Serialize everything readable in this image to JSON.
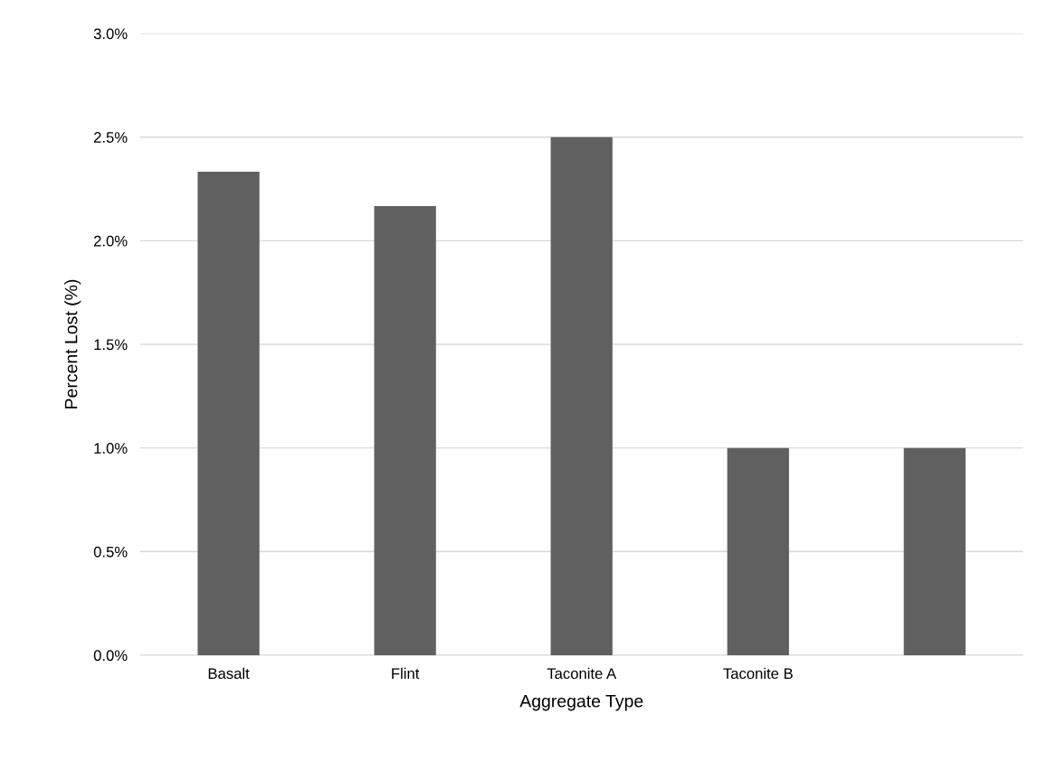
{
  "chart_data": {
    "type": "bar",
    "categories": [
      "Basalt",
      "Flint",
      "Taconite A",
      "Taconite B",
      null
    ],
    "values": [
      2.333,
      2.167,
      2.5,
      1.0,
      1.0
    ],
    "color": "#606060",
    "xlabel": "Aggregate Type",
    "ylabel": "Percent Lost (%)",
    "ylim": [
      0,
      3.0
    ],
    "yticks": [
      {
        "value": 0,
        "label": "0.0%"
      },
      {
        "value": 0.5,
        "label": "0.5%"
      },
      {
        "value": 1.0,
        "label": "1.0%"
      },
      {
        "value": 1.5,
        "label": "1.5%"
      },
      {
        "value": 2.0,
        "label": "2.0%"
      },
      {
        "value": 2.5,
        "label": "2.5%"
      },
      {
        "value": 3.0,
        "label": "3.0%"
      }
    ],
    "grid": "y",
    "legend": false
  }
}
